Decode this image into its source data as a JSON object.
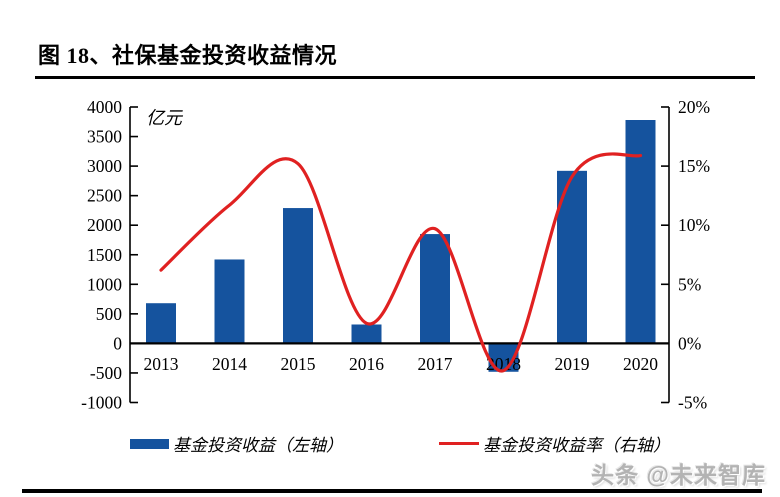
{
  "header": {
    "title": "图 18、社保基金投资收益情况"
  },
  "chart_data": {
    "type": "bar",
    "subtype": "bar+line combo",
    "title": "社保基金投资收益情况",
    "unit_label": "亿元",
    "categories": [
      "2013",
      "2014",
      "2015",
      "2016",
      "2017",
      "2018",
      "2019",
      "2020"
    ],
    "series": [
      {
        "name": "基金投资收益（左轴）",
        "type": "bar",
        "axis": "left",
        "color": "#15539E",
        "values": [
          680,
          1420,
          2290,
          320,
          1850,
          -480,
          2920,
          3780
        ]
      },
      {
        "name": "基金投资收益率（右轴）",
        "type": "line",
        "axis": "right",
        "color": "#E02121",
        "values": [
          6.2,
          11.7,
          15.2,
          1.7,
          9.7,
          -2.3,
          14.1,
          15.9
        ]
      }
    ],
    "left_axis": {
      "label": "亿元",
      "min": -1000,
      "max": 4000,
      "step": 500,
      "ticks": [
        "4000",
        "3500",
        "3000",
        "2500",
        "2000",
        "1500",
        "1000",
        "500",
        "0",
        "-500",
        "-1000"
      ]
    },
    "right_axis": {
      "min": -5,
      "max": 20,
      "step": 5,
      "ticks": [
        "20%",
        "15%",
        "10%",
        "5%",
        "0%",
        "-5%"
      ]
    },
    "grid": false,
    "legend_position": "bottom",
    "line_smoothed": true
  },
  "legend": {
    "bar_label": "基金投资收益（左轴）",
    "line_label": "基金投资收益率（右轴）"
  },
  "watermark": {
    "text": "头条 @未来智库"
  },
  "colors": {
    "bar": "#15539E",
    "line": "#E02121",
    "axis": "#000000"
  }
}
